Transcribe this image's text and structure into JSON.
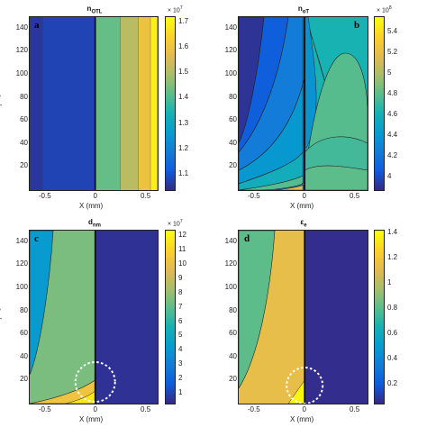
{
  "chart_data": [
    {
      "panel_label": "a",
      "title_main": "n",
      "title_sub": "OTL",
      "type": "heatmap",
      "xlabel": "X (mm)",
      "ylabel_main": "E",
      "ylabel_mid": "j",
      "ylabel_den": "/E",
      "ylabel_sub": "c",
      "x_ticks": [
        "-0.5",
        "0",
        "0.5"
      ],
      "y_ticks": [
        "20",
        "40",
        "60",
        "80",
        "100",
        "120",
        "140"
      ],
      "colorbar_ticks": [
        "1.1",
        "1.2",
        "1.3",
        "1.4",
        "1.5",
        "1.6",
        "1.7"
      ],
      "colorbar_exponent": "× 10",
      "colorbar_power": "7",
      "vertical_bands": [
        {
          "x_from": -0.65,
          "x_to": -0.52,
          "value": 1.06
        },
        {
          "x_from": -0.52,
          "x_to": 0.0,
          "value": 1.08
        },
        {
          "x_from": 0.0,
          "x_to": 0.25,
          "value": 1.43
        },
        {
          "x_from": 0.25,
          "x_to": 0.43,
          "value": 1.52
        },
        {
          "x_from": 0.43,
          "x_to": 0.55,
          "value": 1.6
        },
        {
          "x_from": 0.55,
          "x_to": 0.62,
          "value": 1.7
        }
      ]
    },
    {
      "panel_label": "b",
      "title_main": "n",
      "title_sub": "oT",
      "type": "heatmap",
      "xlabel": "X (mm)",
      "x_ticks": [
        "-0.5",
        "0",
        "0.5"
      ],
      "y_ticks": [
        "20",
        "40",
        "60",
        "80",
        "100",
        "120",
        "140"
      ],
      "colorbar_ticks": [
        "4",
        "4.2",
        "4.4",
        "4.6",
        "4.8",
        "5",
        "5.2",
        "5.4"
      ],
      "colorbar_exponent": "× 10",
      "colorbar_power": "8"
    },
    {
      "panel_label": "c",
      "title_main": "d",
      "title_sub": "nm",
      "type": "heatmap",
      "xlabel": "X (mm)",
      "ylabel_main": "E",
      "ylabel_mid": "j",
      "ylabel_den": "/E",
      "ylabel_sub": "c",
      "x_ticks": [
        "-0.5",
        "0",
        "0.5"
      ],
      "y_ticks": [
        "20",
        "40",
        "60",
        "80",
        "100",
        "120",
        "140"
      ],
      "colorbar_ticks": [
        "1",
        "2",
        "3",
        "4",
        "5",
        "6",
        "7",
        "8",
        "9",
        "10",
        "11",
        "12"
      ],
      "colorbar_exponent": "× 10",
      "colorbar_power": "7"
    },
    {
      "panel_label": "d",
      "title_main": "ε",
      "title_sub": "e",
      "type": "heatmap",
      "xlabel": "X (mm)",
      "x_ticks": [
        "-0.5",
        "0",
        "0.5"
      ],
      "y_ticks": [
        "20",
        "40",
        "60",
        "80",
        "100",
        "120",
        "140"
      ],
      "colorbar_ticks": [
        "0.2",
        "0.4",
        "0.6",
        "0.8",
        "1",
        "1.2",
        "1.4"
      ]
    }
  ]
}
